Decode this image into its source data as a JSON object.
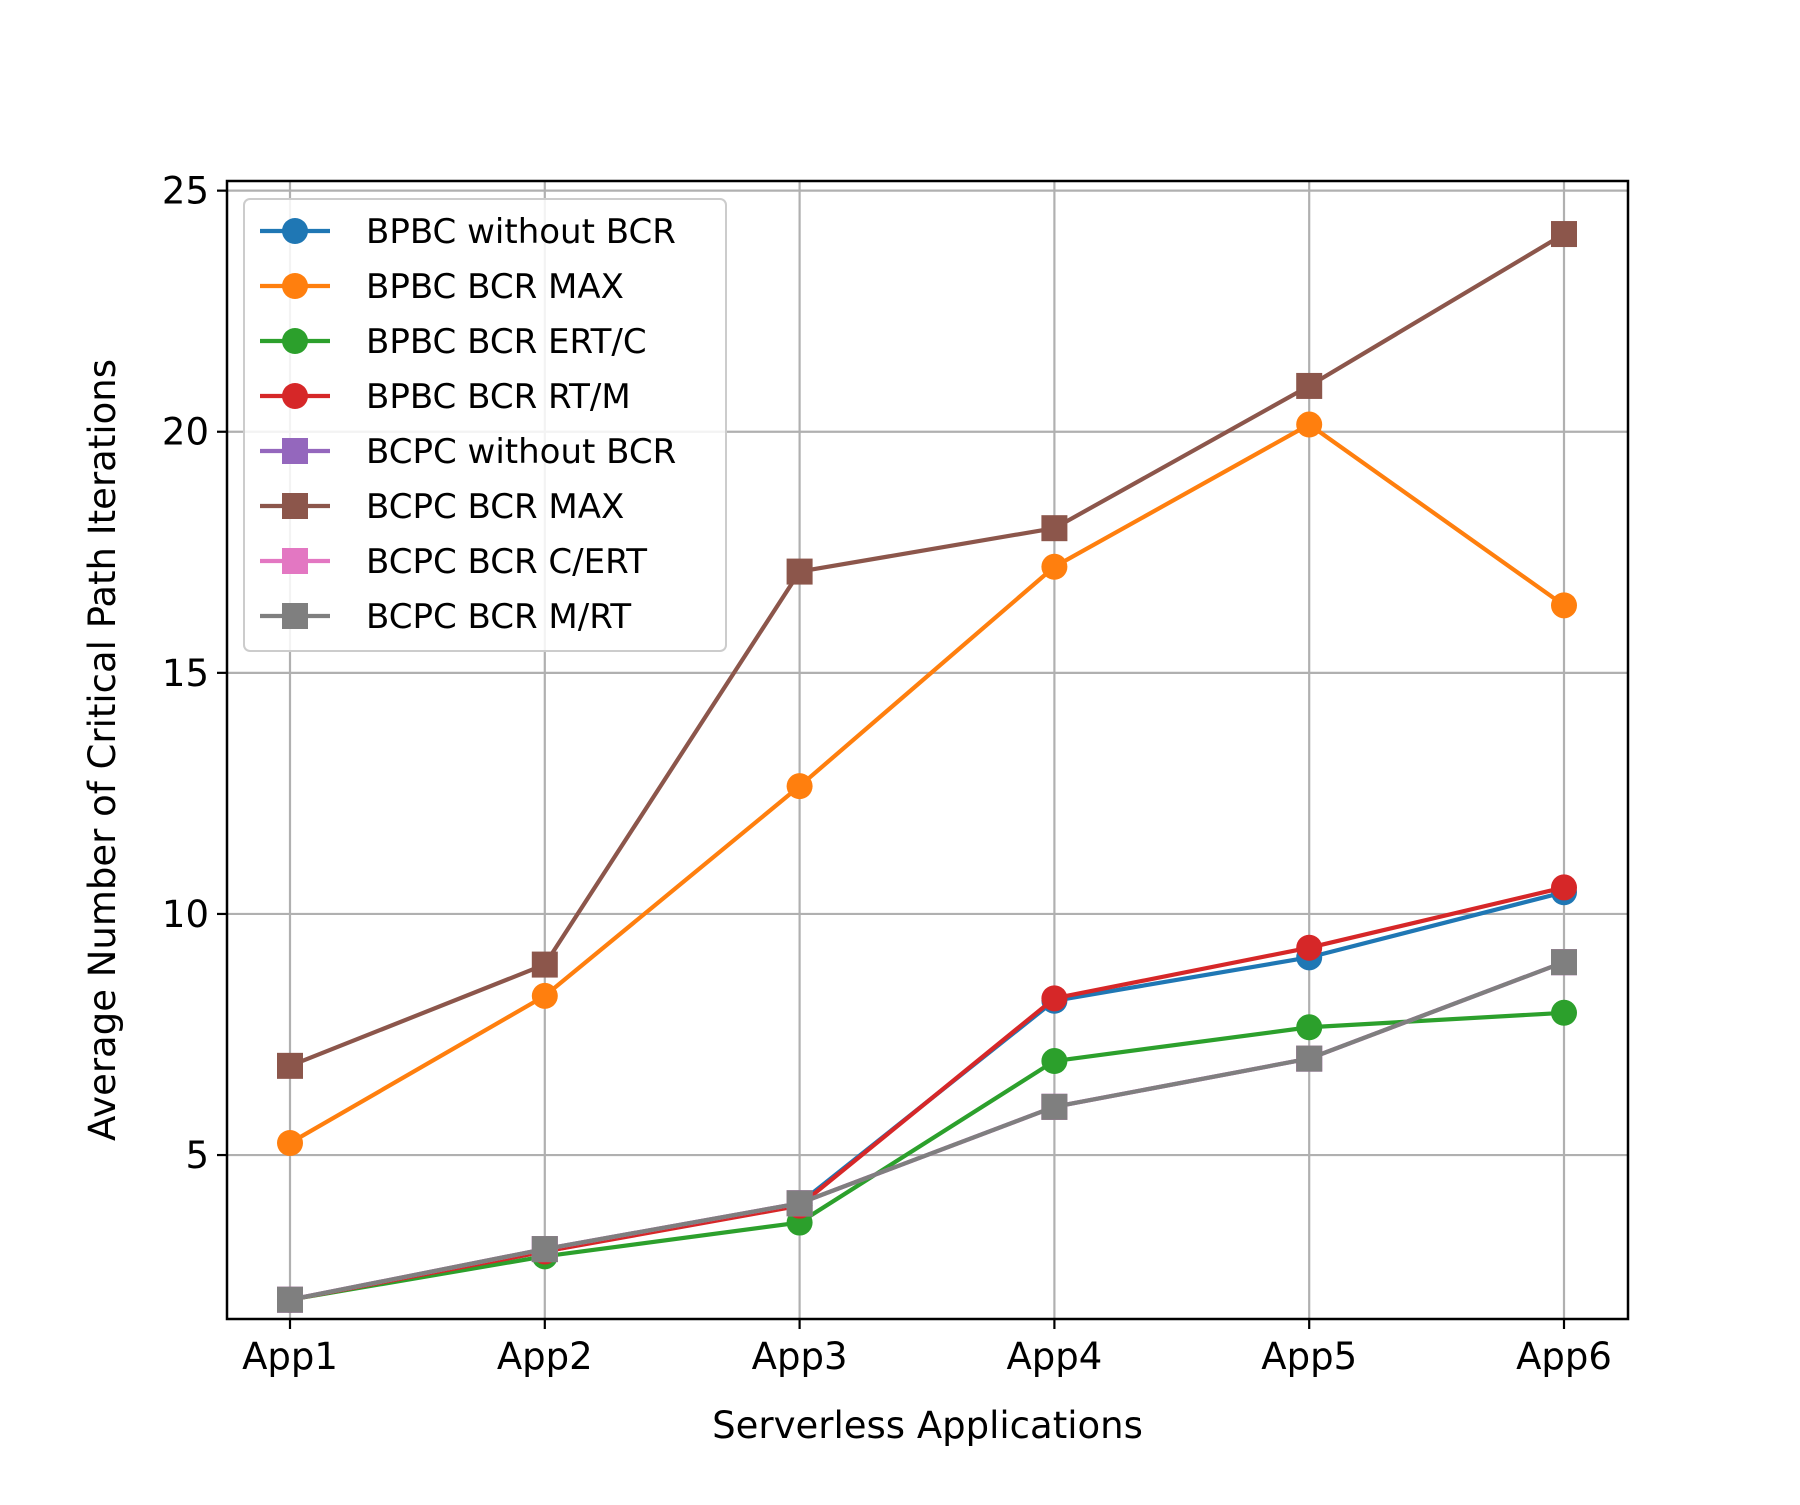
{
  "chart_data": {
    "type": "line",
    "title": "",
    "xlabel": "Serverless Applications",
    "ylabel": "Average Number of Critical Path Iterations",
    "categories": [
      "App1",
      "App2",
      "App3",
      "App4",
      "App5",
      "App6"
    ],
    "ylim": [
      1.6,
      25.2
    ],
    "yticks": [
      5,
      10,
      15,
      20,
      25
    ],
    "grid": true,
    "legend_position": "upper-left",
    "series": [
      {
        "name": "BPBC without BCR",
        "color": "#1f77b4",
        "marker": "circle",
        "values": [
          2.0,
          3.0,
          4.0,
          8.2,
          9.1,
          10.45
        ]
      },
      {
        "name": "BPBC BCR MAX",
        "color": "#ff7f0e",
        "marker": "circle",
        "values": [
          5.25,
          8.3,
          12.65,
          17.2,
          20.15,
          16.4
        ]
      },
      {
        "name": "BPBC BCR ERT/C",
        "color": "#2ca02c",
        "marker": "circle",
        "values": [
          2.0,
          2.9,
          3.6,
          6.95,
          7.65,
          7.95
        ]
      },
      {
        "name": "BPBC BCR RT/M",
        "color": "#d62728",
        "marker": "circle",
        "values": [
          2.0,
          3.0,
          3.95,
          8.25,
          9.3,
          10.55
        ]
      },
      {
        "name": "BCPC without BCR",
        "color": "#9467bd",
        "marker": "square",
        "values": [
          2.0,
          3.05,
          4.0,
          6.0,
          7.0,
          9.0
        ]
      },
      {
        "name": "BCPC BCR MAX",
        "color": "#8c564b",
        "marker": "square",
        "values": [
          6.85,
          8.95,
          17.1,
          18.0,
          20.95,
          24.1
        ]
      },
      {
        "name": "BCPC BCR C/ERT",
        "color": "#e377c2",
        "marker": "square",
        "values": [
          2.0,
          3.05,
          4.0,
          6.0,
          7.0,
          9.0
        ]
      },
      {
        "name": "BCPC BCR M/RT",
        "color": "#7f7f7f",
        "marker": "square",
        "values": [
          2.0,
          3.05,
          4.0,
          6.0,
          7.0,
          9.0
        ]
      }
    ]
  }
}
